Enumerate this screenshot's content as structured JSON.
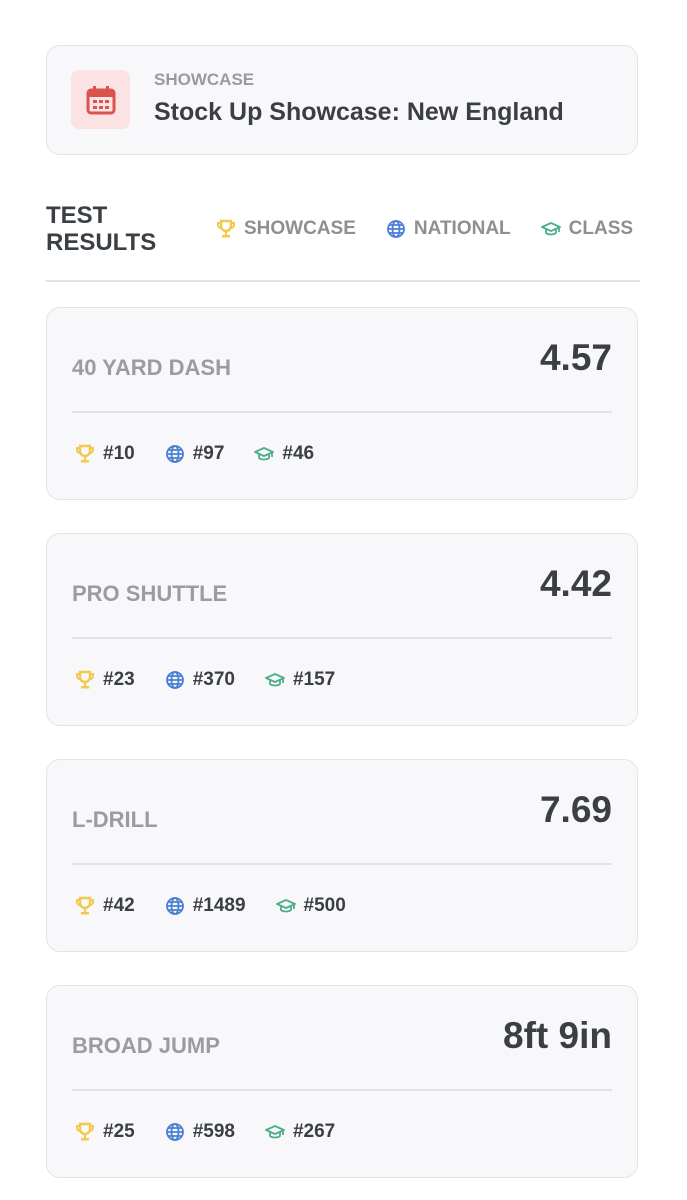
{
  "header": {
    "label": "SHOWCASE",
    "title": "Stock Up Showcase: New England"
  },
  "section": {
    "title": "TEST RESULTS",
    "legend": [
      "SHOWCASE",
      "NATIONAL",
      "CLASS"
    ]
  },
  "results": [
    {
      "name": "40 YARD DASH",
      "value": "4.57",
      "ranks": [
        "#10",
        "#97",
        "#46"
      ]
    },
    {
      "name": "PRO SHUTTLE",
      "value": "4.42",
      "ranks": [
        "#23",
        "#370",
        "#157"
      ]
    },
    {
      "name": "L-DRILL",
      "value": "7.69",
      "ranks": [
        "#42",
        "#1489",
        "#500"
      ]
    },
    {
      "name": "BROAD JUMP",
      "value": "8ft 9in",
      "ranks": [
        "#25",
        "#598",
        "#267"
      ]
    }
  ]
}
